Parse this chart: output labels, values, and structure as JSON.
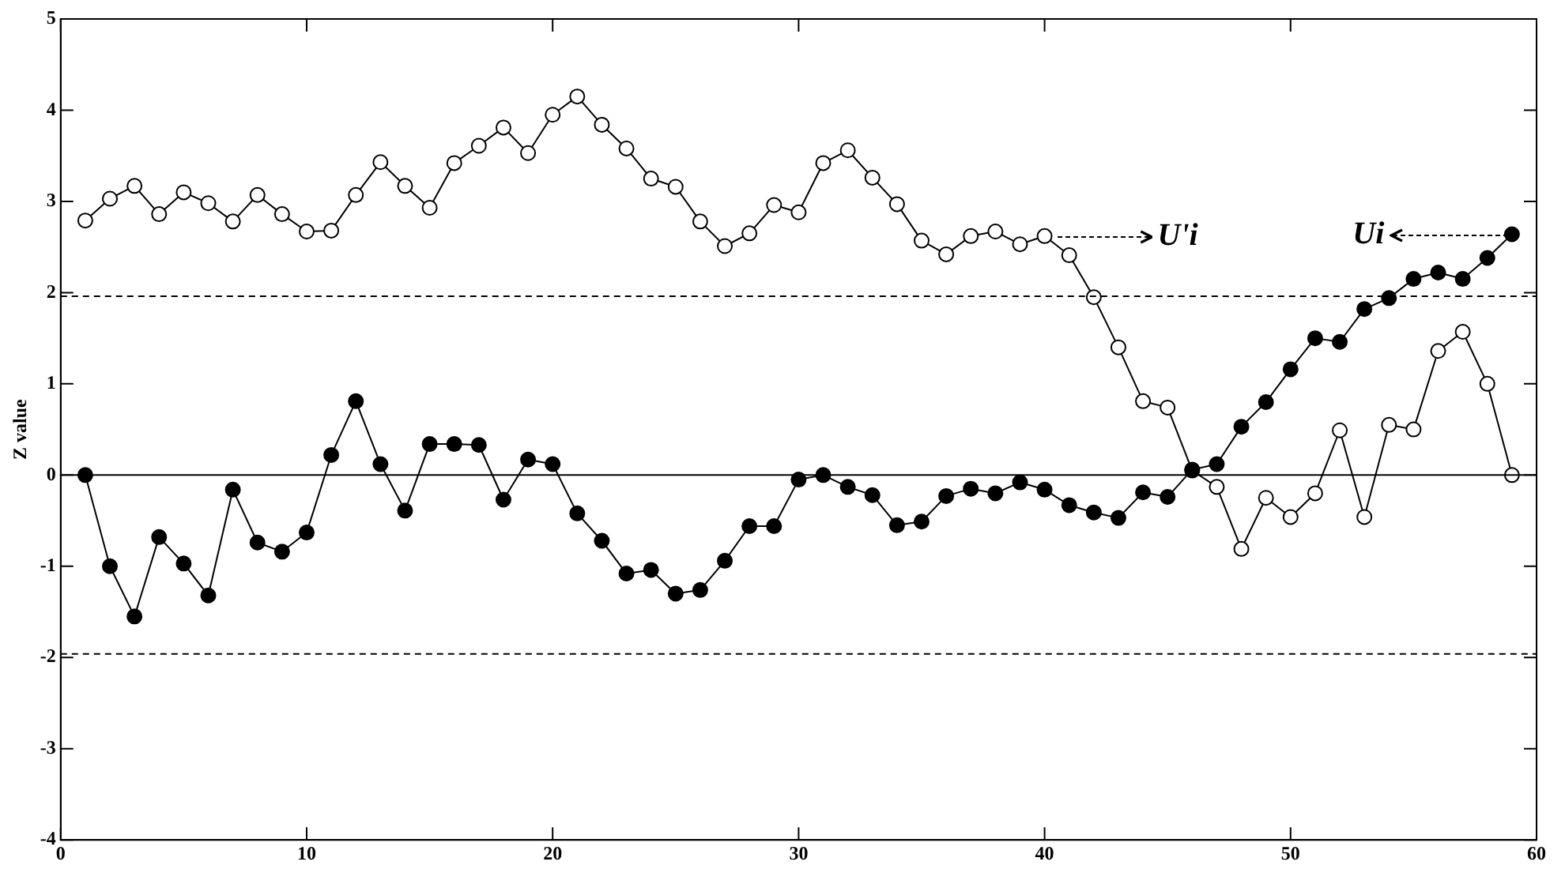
{
  "chart_data": {
    "type": "line",
    "ylabel": "Z value",
    "x": [
      1,
      2,
      3,
      4,
      5,
      6,
      7,
      8,
      9,
      10,
      11,
      12,
      13,
      14,
      15,
      16,
      17,
      18,
      19,
      20,
      21,
      22,
      23,
      24,
      25,
      26,
      27,
      28,
      29,
      30,
      31,
      32,
      33,
      34,
      35,
      36,
      37,
      38,
      39,
      40,
      41,
      42,
      43,
      44,
      45,
      46,
      47,
      48,
      49,
      50,
      51,
      52,
      53,
      54,
      55,
      56,
      57,
      58,
      59
    ],
    "series": [
      {
        "color": "#000000",
        "values": [
          0,
          -1.0,
          -1.55,
          -0.68,
          -0.97,
          -1.32,
          -0.16,
          -0.74,
          -0.84,
          -0.63,
          0.22,
          0.81,
          0.12,
          -0.39,
          0.34,
          0.34,
          0.33,
          -0.27,
          0.17,
          0.12,
          -0.42,
          -0.72,
          -1.08,
          -1.04,
          -1.3,
          -1.26,
          -0.94,
          -0.56,
          -0.56,
          -0.05,
          0.0,
          -0.13,
          -0.22,
          -0.55,
          -0.51,
          -0.23,
          -0.15,
          -0.2,
          -0.08,
          -0.16,
          -0.33,
          -0.41,
          -0.47,
          -0.19,
          -0.24,
          0.06,
          0.12,
          0.53,
          0.8,
          1.16,
          1.5,
          1.46,
          1.82,
          1.94,
          2.15,
          2.22,
          2.15,
          2.38,
          2.64
        ]
      },
      {
        "color": "#000000",
        "values": [
          2.79,
          3.03,
          3.17,
          2.86,
          3.1,
          2.98,
          2.78,
          3.07,
          2.86,
          2.67,
          2.68,
          3.07,
          3.43,
          3.17,
          2.93,
          3.42,
          3.61,
          3.81,
          3.53,
          3.95,
          4.15,
          3.84,
          3.58,
          3.25,
          3.16,
          2.78,
          2.51,
          2.65,
          2.96,
          2.88,
          3.42,
          3.56,
          3.26,
          2.97,
          2.57,
          2.42,
          2.62,
          2.67,
          2.53,
          2.62,
          2.41,
          1.95,
          1.4,
          0.81,
          0.74,
          0.05,
          -0.13,
          -0.81,
          -0.25,
          -0.46,
          -0.2,
          0.49,
          -0.46,
          0.55,
          0.5,
          1.36,
          1.57,
          1.0,
          0.0
        ]
      }
    ],
    "xlim": [
      0,
      60
    ],
    "xticks": [
      0,
      10,
      20,
      30,
      40,
      50,
      60
    ],
    "ylim": [
      -4,
      5
    ],
    "yticks": [
      -4,
      -3,
      -2,
      -1,
      0,
      1,
      2,
      3,
      4,
      5
    ],
    "ref_lines": [
      {
        "axis": "y",
        "value": 1.96,
        "color": "#000000",
        "line_style": "dashed"
      },
      {
        "axis": "y",
        "value": -1.96,
        "color": "#000000",
        "line_style": "dashed"
      },
      {
        "axis": "y",
        "value": 0,
        "color": "#000000",
        "line_style": "solid"
      }
    ],
    "annotations": [
      "U'i",
      "Ui"
    ],
    "grid": false,
    "legend": false,
    "marker": "circle",
    "line_style": "solid"
  }
}
